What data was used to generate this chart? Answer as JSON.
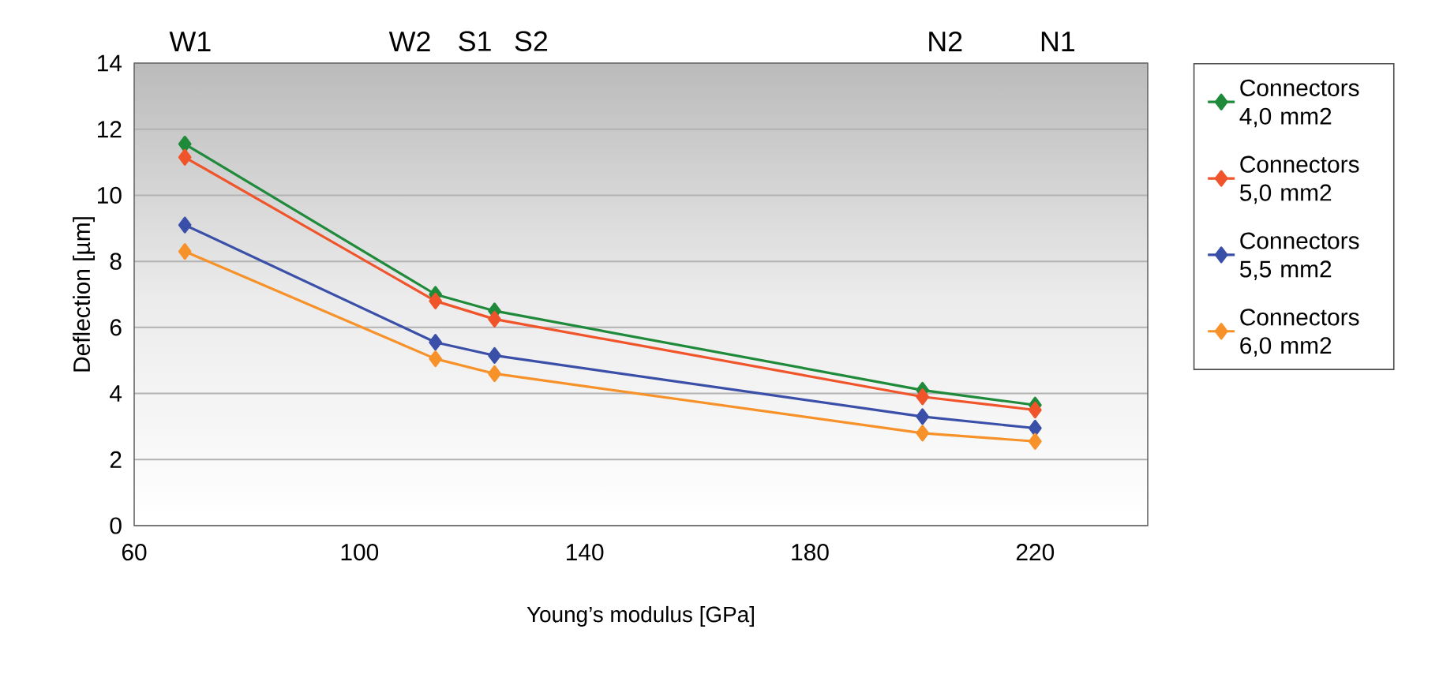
{
  "chart_data": {
    "type": "line",
    "xlabel": "Young’s modulus [GPa]",
    "ylabel": "Deflection [µm]",
    "x": [
      69,
      113.5,
      124,
      200,
      220
    ],
    "series": [
      {
        "name": "Connectors 4,0 mm2",
        "color": "#1f8a3a",
        "values": [
          11.55,
          7.0,
          6.5,
          4.1,
          3.65
        ]
      },
      {
        "name": "Connectors 5,0 mm2",
        "color": "#f0542a",
        "values": [
          11.15,
          6.8,
          6.25,
          3.9,
          3.5
        ]
      },
      {
        "name": "Connectors 5,5 mm2",
        "color": "#3a4fa8",
        "values": [
          9.1,
          5.55,
          5.15,
          3.3,
          2.95
        ]
      },
      {
        "name": "Connectors 6,0 mm2",
        "color": "#f7922a",
        "values": [
          8.3,
          5.05,
          4.6,
          2.8,
          2.55
        ]
      }
    ],
    "xlim": [
      60,
      240
    ],
    "xticks": [
      60,
      100,
      140,
      180,
      220
    ],
    "ylim": [
      0,
      14
    ],
    "yticks": [
      0,
      2,
      4,
      6,
      8,
      10,
      12,
      14
    ],
    "annotations": [
      "W1",
      "W2",
      "S1",
      "S2",
      "N2",
      "N1"
    ],
    "grid": "y",
    "legend": "right",
    "marker": "diamond",
    "line_style": "solid"
  }
}
